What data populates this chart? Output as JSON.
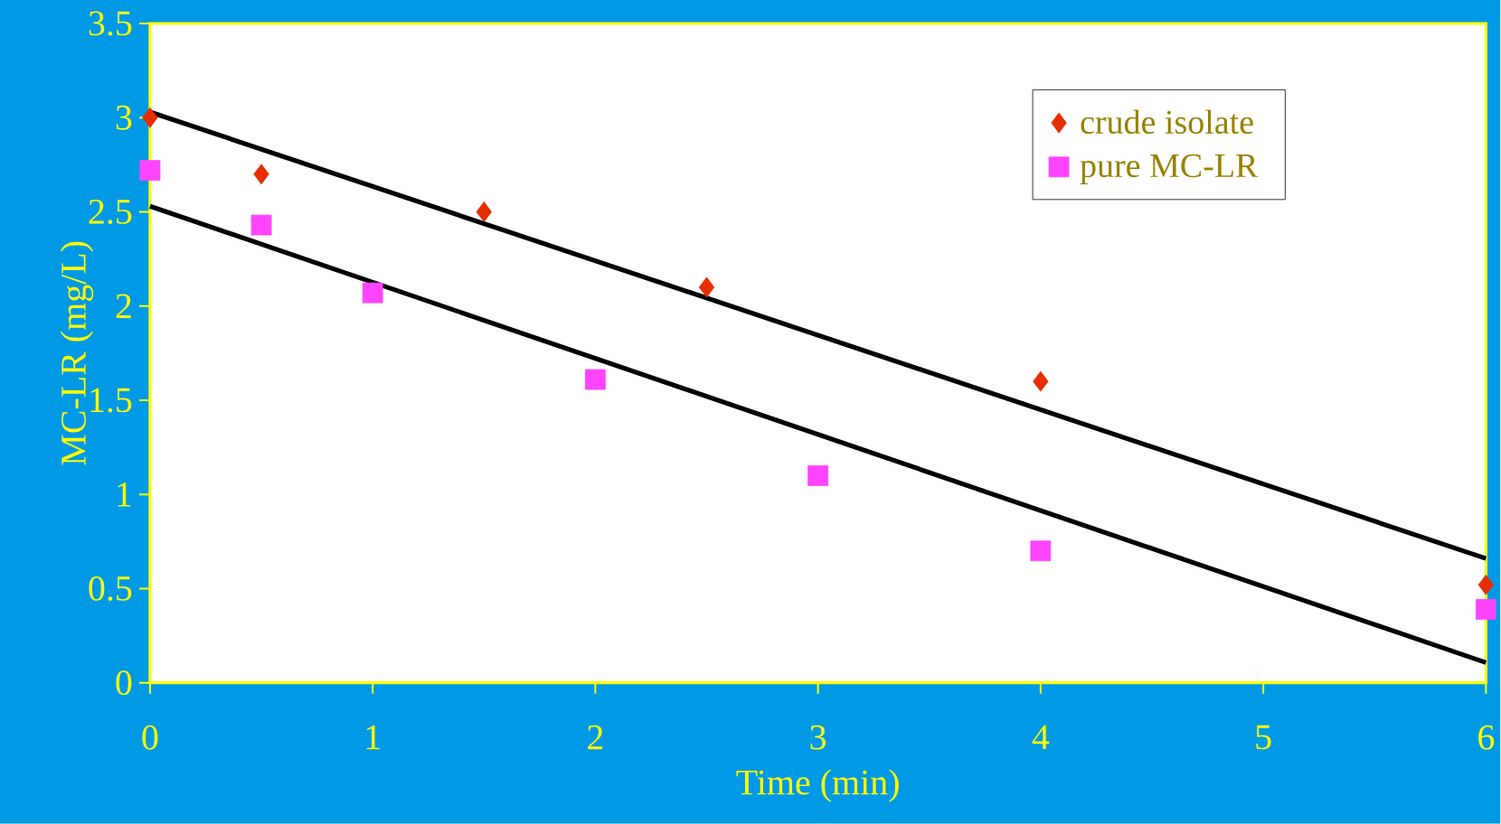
{
  "chart_data": {
    "type": "scatter",
    "xlabel": "Time (min)",
    "ylabel": "MC-LR (mg/L)",
    "xlim": [
      0,
      6
    ],
    "ylim": [
      0,
      3.5
    ],
    "xticks": [
      0,
      1,
      2,
      3,
      4,
      5,
      6
    ],
    "yticks": [
      0,
      0.5,
      1,
      1.5,
      2,
      2.5,
      3,
      3.5
    ],
    "grid": false,
    "legend": "top right",
    "series": [
      {
        "name": "crude isolate",
        "color": "#e62e00",
        "marker": "diamond",
        "x": [
          0,
          0.5,
          1.5,
          2.5,
          4,
          6
        ],
        "values": [
          3.0,
          2.7,
          2.5,
          2.1,
          1.6,
          0.52
        ]
      },
      {
        "name": "pure MC-LR",
        "color": "#ff44ff",
        "marker": "square",
        "x": [
          0,
          0.5,
          1,
          2,
          3,
          4,
          6
        ],
        "values": [
          2.72,
          2.43,
          2.07,
          1.61,
          1.1,
          0.7,
          0.39
        ]
      },
      {
        "type": "line",
        "color": "#000000",
        "marker": "none",
        "line_style": "solid",
        "x": [
          0,
          6
        ],
        "values": [
          3.03,
          0.66
        ]
      },
      {
        "type": "line",
        "color": "#000000",
        "marker": "none",
        "line_style": "solid",
        "x": [
          0,
          6
        ],
        "values": [
          2.53,
          0.107
        ]
      }
    ]
  }
}
